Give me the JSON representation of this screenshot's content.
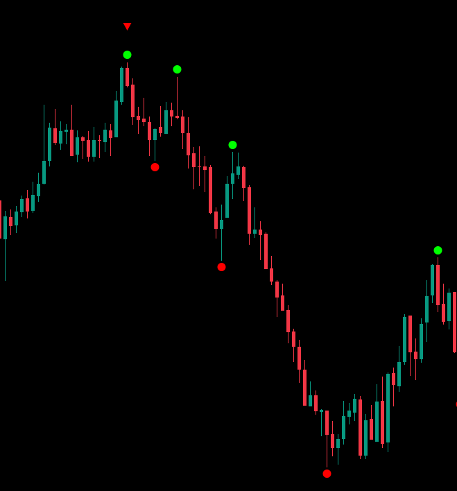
{
  "chart_data": {
    "type": "candlestick",
    "title": "",
    "xlabel": "",
    "ylabel": "",
    "grid": false,
    "axes_visible": false,
    "ylim": [
      0,
      1000
    ],
    "colors": {
      "background": "#000000",
      "up": "#089981",
      "down": "#f23645",
      "swing_high_dot": "#00ff00",
      "swing_low_dot": "#ff0000",
      "sell_arrow": "#ff0000"
    },
    "ohlc_fields": [
      "open",
      "high",
      "low",
      "close"
    ],
    "candles": [
      [
        711,
        711,
        656,
        656
      ],
      [
        655,
        696,
        595,
        688
      ],
      [
        687,
        698,
        661,
        674
      ],
      [
        675,
        703,
        664,
        695
      ],
      [
        694,
        718,
        687,
        713
      ],
      [
        714,
        726,
        685,
        695
      ],
      [
        696,
        738,
        693,
        719
      ],
      [
        717,
        751,
        709,
        735
      ],
      [
        735,
        849,
        734,
        768
      ],
      [
        768,
        823,
        760,
        816
      ],
      [
        815,
        843,
        791,
        794
      ],
      [
        793,
        825,
        784,
        811
      ],
      [
        810,
        821,
        792,
        813
      ],
      [
        813,
        849,
        775,
        775
      ],
      [
        777,
        812,
        766,
        802
      ],
      [
        802,
        804,
        771,
        797
      ],
      [
        798,
        811,
        767,
        774
      ],
      [
        774,
        817,
        767,
        798
      ],
      [
        798,
        805,
        772,
        797
      ],
      [
        795,
        823,
        781,
        813
      ],
      [
        812,
        821,
        775,
        801
      ],
      [
        802,
        869,
        802,
        855
      ],
      [
        853,
        904,
        849,
        902
      ],
      [
        902,
        910,
        874,
        876
      ],
      [
        878,
        887,
        820,
        831
      ],
      [
        833,
        846,
        807,
        827
      ],
      [
        829,
        859,
        818,
        824
      ],
      [
        824,
        832,
        775,
        798
      ],
      [
        798,
        815,
        768,
        814
      ],
      [
        817,
        847,
        803,
        808
      ],
      [
        807,
        853,
        807,
        841
      ],
      [
        841,
        852,
        818,
        832
      ],
      [
        833,
        889,
        828,
        830
      ],
      [
        832,
        841,
        785,
        808
      ],
      [
        808,
        831,
        757,
        776
      ],
      [
        779,
        788,
        727,
        759
      ],
      [
        760,
        789,
        732,
        759
      ],
      [
        760,
        775,
        723,
        755
      ],
      [
        759,
        762,
        691,
        693
      ],
      [
        695,
        701,
        656,
        670
      ],
      [
        670,
        705,
        624,
        683
      ],
      [
        686,
        746,
        686,
        735
      ],
      [
        735,
        781,
        713,
        750
      ],
      [
        748,
        780,
        742,
        760
      ],
      [
        759,
        761,
        710,
        729
      ],
      [
        730,
        733,
        647,
        663
      ],
      [
        663,
        701,
        657,
        669
      ],
      [
        669,
        681,
        625,
        661
      ],
      [
        663,
        665,
        612,
        612
      ],
      [
        613,
        631,
        589,
        594
      ],
      [
        594,
        596,
        543,
        571
      ],
      [
        574,
        591,
        552,
        552
      ],
      [
        553,
        560,
        505,
        521
      ],
      [
        522,
        526,
        478,
        500
      ],
      [
        500,
        510,
        448,
        467
      ],
      [
        467,
        481,
        415,
        415
      ],
      [
        414,
        450,
        414,
        430
      ],
      [
        430,
        437,
        402,
        407
      ],
      [
        406,
        410,
        371,
        409
      ],
      [
        408,
        408,
        326,
        373
      ],
      [
        374,
        393,
        342,
        354
      ],
      [
        354,
        374,
        330,
        367
      ],
      [
        367,
        422,
        359,
        400
      ],
      [
        399,
        419,
        388,
        408
      ],
      [
        405,
        432,
        393,
        425
      ],
      [
        424,
        429,
        338,
        343
      ],
      [
        343,
        403,
        338,
        394
      ],
      [
        396,
        416,
        366,
        366
      ],
      [
        363,
        446,
        363,
        421
      ],
      [
        422,
        457,
        354,
        360
      ],
      [
        362,
        463,
        348,
        461
      ],
      [
        462,
        470,
        414,
        445
      ],
      [
        443,
        501,
        435,
        478
      ],
      [
        478,
        547,
        474,
        543
      ],
      [
        545,
        545,
        458,
        492
      ],
      [
        493,
        512,
        452,
        482
      ],
      [
        482,
        541,
        477,
        533
      ],
      [
        535,
        596,
        507,
        573
      ],
      [
        574,
        619,
        563,
        618
      ],
      [
        618,
        629,
        550,
        560
      ],
      [
        562,
        591,
        532,
        536
      ],
      [
        537,
        584,
        525,
        578
      ],
      [
        579,
        579,
        491,
        492
      ]
    ],
    "markers": [
      {
        "type": "swing-high-dot",
        "candle": 23,
        "value": 921
      },
      {
        "type": "swing-high-dot",
        "candle": 32,
        "value": 900
      },
      {
        "type": "swing-high-dot",
        "candle": 42,
        "value": 791
      },
      {
        "type": "swing-high-dot",
        "candle": 79,
        "value": 639
      },
      {
        "type": "swing-low-dot",
        "candle": 28,
        "value": 759
      },
      {
        "type": "swing-low-dot",
        "candle": 40,
        "value": 615
      },
      {
        "type": "swing-low-dot",
        "candle": 59,
        "value": 317
      },
      {
        "type": "swing-low-dot",
        "candle": 83,
        "value": 417
      },
      {
        "type": "sell-arrow-down",
        "candle": 23,
        "value": 962
      }
    ]
  }
}
